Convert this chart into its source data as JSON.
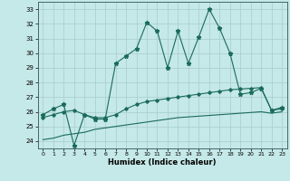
{
  "xlabel": "Humidex (Indice chaleur)",
  "xlim": [
    -0.5,
    23.5
  ],
  "ylim": [
    23.5,
    33.5
  ],
  "yticks": [
    24,
    25,
    26,
    27,
    28,
    29,
    30,
    31,
    32,
    33
  ],
  "xticks": [
    0,
    1,
    2,
    3,
    4,
    5,
    6,
    7,
    8,
    9,
    10,
    11,
    12,
    13,
    14,
    15,
    16,
    17,
    18,
    19,
    20,
    21,
    22,
    23
  ],
  "bg_color": "#c5e8e8",
  "line_color": "#1a6b5a",
  "line1_x": [
    0,
    1,
    2,
    3,
    4,
    5,
    6,
    7,
    8,
    9,
    10,
    11,
    12,
    13,
    14,
    15,
    16,
    17,
    18,
    19,
    20,
    21,
    22,
    23
  ],
  "line1_y": [
    25.8,
    26.2,
    26.5,
    23.7,
    25.8,
    25.5,
    25.5,
    29.3,
    29.8,
    30.3,
    32.1,
    31.5,
    29.0,
    31.5,
    29.3,
    31.1,
    33.0,
    31.7,
    30.0,
    27.2,
    27.3,
    27.6,
    26.1,
    26.3
  ],
  "line2_x": [
    0,
    1,
    2,
    3,
    4,
    5,
    6,
    7,
    8,
    9,
    10,
    11,
    12,
    13,
    14,
    15,
    16,
    17,
    18,
    19,
    20,
    21,
    22,
    23
  ],
  "line2_y": [
    25.6,
    25.8,
    26.0,
    26.1,
    25.8,
    25.6,
    25.6,
    25.8,
    26.2,
    26.5,
    26.7,
    26.8,
    26.9,
    27.0,
    27.1,
    27.2,
    27.3,
    27.4,
    27.5,
    27.55,
    27.6,
    27.65,
    26.1,
    26.2
  ],
  "line3_x": [
    0,
    1,
    2,
    3,
    4,
    5,
    6,
    7,
    8,
    9,
    10,
    11,
    12,
    13,
    14,
    15,
    16,
    17,
    18,
    19,
    20,
    21,
    22,
    23
  ],
  "line3_y": [
    24.1,
    24.2,
    24.4,
    24.5,
    24.6,
    24.8,
    24.9,
    25.0,
    25.1,
    25.2,
    25.3,
    25.4,
    25.5,
    25.6,
    25.65,
    25.7,
    25.75,
    25.8,
    25.85,
    25.9,
    25.95,
    26.0,
    25.9,
    26.0
  ]
}
